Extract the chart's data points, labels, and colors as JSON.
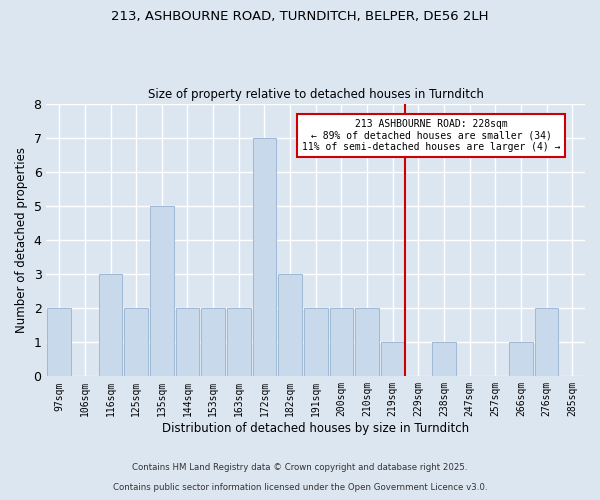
{
  "title1": "213, ASHBOURNE ROAD, TURNDITCH, BELPER, DE56 2LH",
  "title2": "Size of property relative to detached houses in Turnditch",
  "xlabel": "Distribution of detached houses by size in Turnditch",
  "ylabel": "Number of detached properties",
  "categories": [
    "97sqm",
    "106sqm",
    "116sqm",
    "125sqm",
    "135sqm",
    "144sqm",
    "153sqm",
    "163sqm",
    "172sqm",
    "182sqm",
    "191sqm",
    "200sqm",
    "210sqm",
    "219sqm",
    "229sqm",
    "238sqm",
    "247sqm",
    "257sqm",
    "266sqm",
    "276sqm",
    "285sqm"
  ],
  "values": [
    2,
    0,
    3,
    2,
    5,
    2,
    2,
    2,
    7,
    3,
    2,
    2,
    2,
    1,
    0,
    1,
    0,
    0,
    1,
    2,
    0
  ],
  "bar_color": "#c9d9ec",
  "bar_edgecolor": "#9fb8d4",
  "vline_x_index": 14,
  "vline_color": "#cc0000",
  "annotation_title": "213 ASHBOURNE ROAD: 228sqm",
  "annotation_line1": "← 89% of detached houses are smaller (34)",
  "annotation_line2": "11% of semi-detached houses are larger (4) →",
  "annotation_box_facecolor": "#ffffff",
  "annotation_box_edgecolor": "#cc0000",
  "ylim": [
    0,
    8
  ],
  "yticks": [
    0,
    1,
    2,
    3,
    4,
    5,
    6,
    7,
    8
  ],
  "bg_color": "#dce6f1",
  "grid_color": "#c0cfe0",
  "footer1": "Contains HM Land Registry data © Crown copyright and database right 2025.",
  "footer2": "Contains public sector information licensed under the Open Government Licence v3.0."
}
